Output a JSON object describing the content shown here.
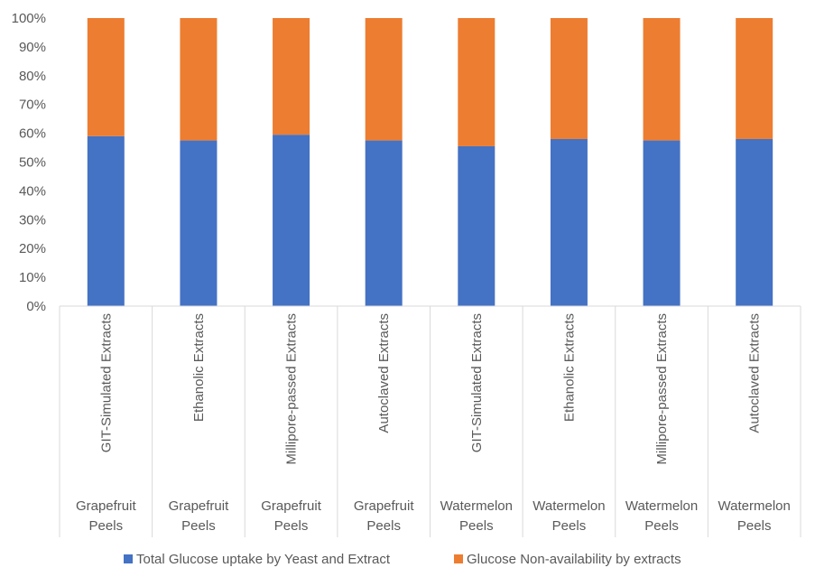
{
  "chart_data": {
    "type": "bar",
    "stacked": true,
    "percent_stacked": true,
    "categories": [
      {
        "inner": "GIT-Simulated Extracts",
        "outer": "Grapefruit Peels"
      },
      {
        "inner": "Ethanolic Extracts",
        "outer": "Grapefruit Peels"
      },
      {
        "inner": "Millipore-passed Extracts",
        "outer": "Grapefruit Peels"
      },
      {
        "inner": "Autoclaved Extracts",
        "outer": "Grapefruit Peels"
      },
      {
        "inner": "GIT-Simulated Extracts",
        "outer": "Watermelon Peels"
      },
      {
        "inner": "Ethanolic Extracts",
        "outer": "Watermelon Peels"
      },
      {
        "inner": "Millipore-passed Extracts",
        "outer": "Watermelon Peels"
      },
      {
        "inner": "Autoclaved Extracts",
        "outer": "Watermelon Peels"
      }
    ],
    "series": [
      {
        "name": "Total Glucose uptake by Yeast and Extract",
        "color": "#4472C4",
        "values": [
          59,
          57.5,
          59.5,
          57.5,
          55.5,
          58,
          57.5,
          58
        ]
      },
      {
        "name": "Glucose Non-availability by extracts",
        "color": "#ED7D31",
        "values": [
          41,
          42.5,
          40.5,
          42.5,
          44.5,
          42,
          42.5,
          42
        ]
      }
    ],
    "ylim": [
      0,
      100
    ],
    "yticks": [
      "0%",
      "10%",
      "20%",
      "30%",
      "40%",
      "50%",
      "60%",
      "70%",
      "80%",
      "90%",
      "100%"
    ],
    "grid": false,
    "legend": "bottom"
  }
}
